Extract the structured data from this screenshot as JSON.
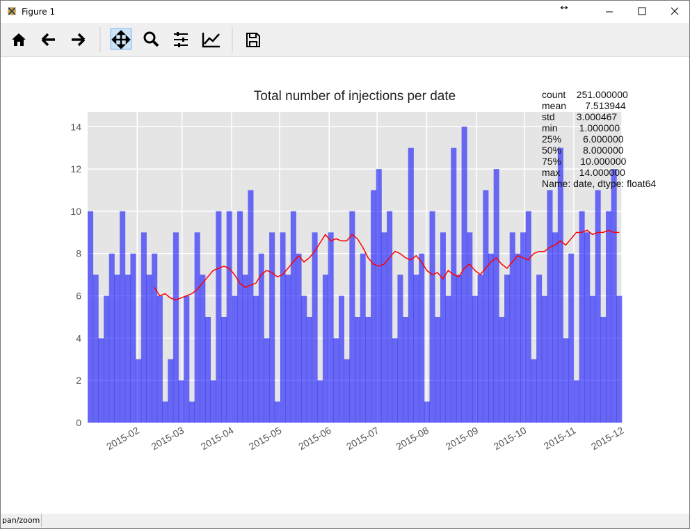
{
  "window": {
    "title": "Figure 1",
    "status": "pan/zoom"
  },
  "chart_data": {
    "type": "bar",
    "title": "Total number of injections per date",
    "annotation_lines": [
      "count    251.000000",
      "mean       7.513944",
      "std        3.000467",
      "min        1.000000",
      "25%        6.000000",
      "50%        8.000000",
      "75%       10.000000",
      "max       14.000000",
      "Name: date, dtype: float64"
    ],
    "xlim": [
      "2015-01",
      "2015-12"
    ],
    "xticks": [
      "2015-02",
      "2015-03",
      "2015-04",
      "2015-05",
      "2015-06",
      "2015-07",
      "2015-08",
      "2015-09",
      "2015-10",
      "2015-11",
      "2015-12"
    ],
    "ylim": [
      0,
      14.7
    ],
    "yticks": [
      0,
      2,
      4,
      6,
      8,
      10,
      12,
      14
    ],
    "grid": true,
    "series": [
      {
        "kind": "bar",
        "color": "#0000ff",
        "values": [
          10,
          7,
          4,
          6,
          8,
          7,
          10,
          7,
          8,
          3,
          9,
          7,
          8,
          6,
          1,
          3,
          9,
          2,
          6,
          1,
          9,
          7,
          5,
          2,
          10,
          5,
          10,
          6,
          10,
          7,
          11,
          6,
          8,
          4,
          9,
          1,
          9,
          7,
          10,
          8,
          6,
          5,
          9,
          2,
          7,
          9,
          4,
          6,
          3,
          10,
          5,
          8,
          5,
          11,
          12,
          9,
          10,
          4,
          7,
          5,
          13,
          7,
          8,
          1,
          10,
          5,
          9,
          6,
          13,
          7,
          14,
          9,
          6,
          7,
          11,
          8,
          12,
          5,
          7,
          9,
          8,
          9,
          10,
          3,
          7,
          6,
          11,
          9,
          13,
          4,
          8,
          2,
          10,
          9,
          6,
          11,
          5,
          10,
          12,
          6
        ]
      },
      {
        "kind": "line",
        "color": "#ff0000",
        "values": [
          null,
          null,
          null,
          null,
          null,
          null,
          null,
          null,
          null,
          null,
          null,
          null,
          6.4,
          6.0,
          6.1,
          5.9,
          5.8,
          5.9,
          6.0,
          6.1,
          6.3,
          6.6,
          6.9,
          7.2,
          7.3,
          7.4,
          7.3,
          7.0,
          6.6,
          6.4,
          6.5,
          6.6,
          7.0,
          7.2,
          7.1,
          6.9,
          7.0,
          7.3,
          7.6,
          7.9,
          7.6,
          7.8,
          8.1,
          8.5,
          8.9,
          8.6,
          8.7,
          8.6,
          8.6,
          8.9,
          8.7,
          8.3,
          7.8,
          7.5,
          7.4,
          7.5,
          7.8,
          8.1,
          8.0,
          7.8,
          7.7,
          7.9,
          7.6,
          7.2,
          7.0,
          7.1,
          6.8,
          7.2,
          7.0,
          6.9,
          7.3,
          7.5,
          7.2,
          7.0,
          7.3,
          7.6,
          7.8,
          7.5,
          7.3,
          7.6,
          7.9,
          7.8,
          7.7,
          8.0,
          8.1,
          8.1,
          8.3,
          8.4,
          8.6,
          8.4,
          8.7,
          9.0,
          9.0,
          9.1,
          8.9,
          9.0,
          9.0,
          9.1,
          9.0,
          9.0
        ]
      }
    ]
  }
}
